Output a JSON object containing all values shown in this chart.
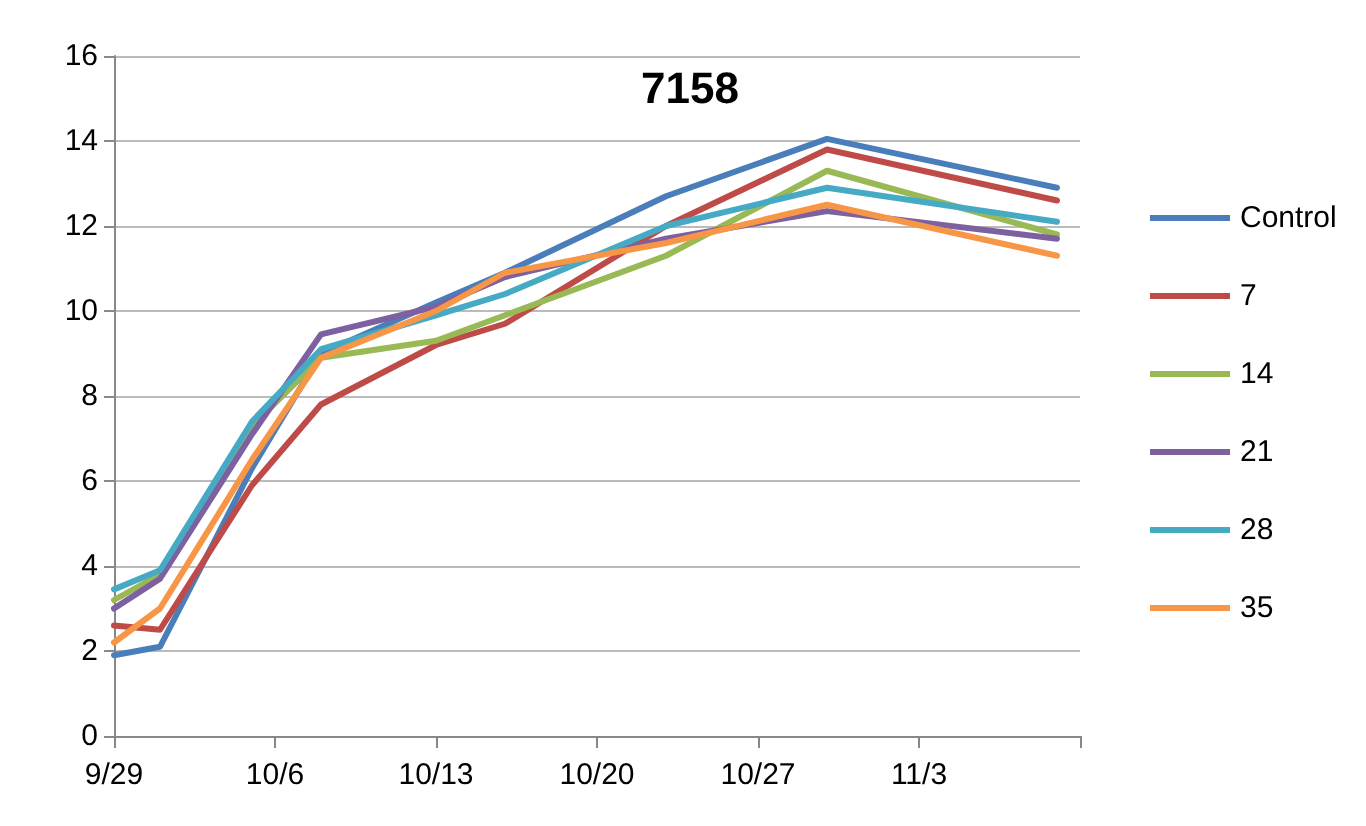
{
  "chart_data": {
    "type": "line",
    "title": "7158",
    "x": [
      "--09-29",
      "--10-01",
      "--10-05",
      "--10-08",
      "--10-13",
      "--10-16",
      "--10-23",
      "--10-30",
      "--11-09"
    ],
    "series": [
      {
        "name": "Control",
        "color": "#4a7ebb",
        "values": [
          1.9,
          2.1,
          6.3,
          9.0,
          10.2,
          10.9,
          12.7,
          14.05,
          12.9
        ]
      },
      {
        "name": "7",
        "color": "#be4b48",
        "values": [
          2.6,
          2.5,
          5.9,
          7.8,
          9.2,
          9.7,
          12.0,
          13.8,
          12.6
        ]
      },
      {
        "name": "14",
        "color": "#98b954",
        "values": [
          3.2,
          3.8,
          7.3,
          8.9,
          9.3,
          9.9,
          11.3,
          13.3,
          11.8
        ]
      },
      {
        "name": "21",
        "color": "#7d60a0",
        "values": [
          3.0,
          3.7,
          7.1,
          9.45,
          10.1,
          10.8,
          11.7,
          12.35,
          11.7
        ]
      },
      {
        "name": "28",
        "color": "#46aac5",
        "values": [
          3.45,
          3.9,
          7.4,
          9.1,
          9.9,
          10.4,
          12.0,
          12.9,
          12.1
        ]
      },
      {
        "name": "35",
        "color": "#f79646",
        "values": [
          2.2,
          3.0,
          6.5,
          8.9,
          10.0,
          10.9,
          11.6,
          12.5,
          11.3
        ]
      }
    ],
    "xlim": [
      "--09-29",
      "--11-10"
    ],
    "xticks": [
      {
        "value": "--09-29",
        "label": "9/29"
      },
      {
        "value": "--10-06",
        "label": "10/6"
      },
      {
        "value": "--10-13",
        "label": "10/13"
      },
      {
        "value": "--10-20",
        "label": "10/20"
      },
      {
        "value": "--10-27",
        "label": "10/27"
      },
      {
        "value": "--11-03",
        "label": "11/3"
      },
      {
        "value": "--11-10",
        "label": null
      }
    ],
    "ylim": [
      0,
      16
    ],
    "yticks": [
      0,
      2,
      4,
      6,
      8,
      10,
      12,
      14,
      16
    ],
    "grid": "y",
    "legend": "right",
    "marker": "none",
    "line_style": "solid"
  }
}
